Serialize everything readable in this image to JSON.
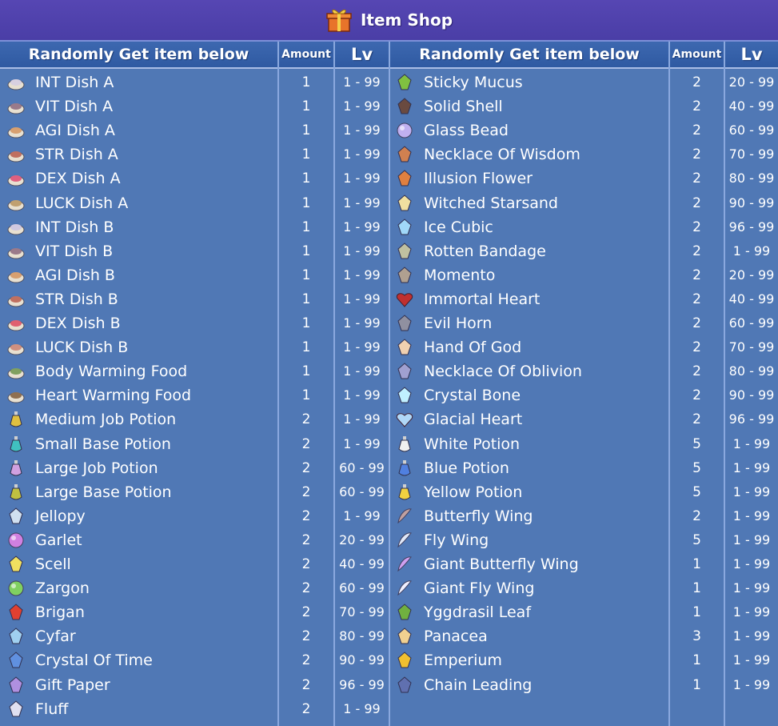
{
  "title": "Item Shop",
  "left": {
    "headers": {
      "item": "Randomly Get item below",
      "amount": "Amount",
      "lv": "Lv"
    },
    "rows": [
      {
        "name": "INT Dish A",
        "amount": "1",
        "lv": "1 - 99",
        "icon": "int-dish-icon",
        "color": "#d8d0e0"
      },
      {
        "name": "VIT Dish A",
        "amount": "1",
        "lv": "1 - 99",
        "icon": "vit-dish-icon",
        "color": "#9a7a8a"
      },
      {
        "name": "AGI Dish A",
        "amount": "1",
        "lv": "1 - 99",
        "icon": "agi-dish-icon",
        "color": "#d8a070"
      },
      {
        "name": "STR Dish A",
        "amount": "1",
        "lv": "1 - 99",
        "icon": "str-dish-icon",
        "color": "#c07060"
      },
      {
        "name": "DEX Dish A",
        "amount": "1",
        "lv": "1 - 99",
        "icon": "dex-dish-icon",
        "color": "#e06080"
      },
      {
        "name": "LUCK Dish A",
        "amount": "1",
        "lv": "1 - 99",
        "icon": "luck-dish-icon",
        "color": "#c0a070"
      },
      {
        "name": "INT Dish B",
        "amount": "1",
        "lv": "1 - 99",
        "icon": "int-dish-icon",
        "color": "#d0c8e0"
      },
      {
        "name": "VIT Dish B",
        "amount": "1",
        "lv": "1 - 99",
        "icon": "vit-dish-icon",
        "color": "#9a7a8a"
      },
      {
        "name": "AGI Dish B",
        "amount": "1",
        "lv": "1 - 99",
        "icon": "agi-dish-icon",
        "color": "#d8a070"
      },
      {
        "name": "STR Dish B",
        "amount": "1",
        "lv": "1 - 99",
        "icon": "str-dish-icon",
        "color": "#c07060"
      },
      {
        "name": "DEX Dish B",
        "amount": "1",
        "lv": "1 - 99",
        "icon": "dex-dish-icon",
        "color": "#e06070"
      },
      {
        "name": "LUCK Dish B",
        "amount": "1",
        "lv": "1 - 99",
        "icon": "luck-dish-icon",
        "color": "#d09080"
      },
      {
        "name": "Body Warming Food",
        "amount": "1",
        "lv": "1 - 99",
        "icon": "food-icon",
        "color": "#80a060"
      },
      {
        "name": "Heart Warming Food",
        "amount": "1",
        "lv": "1 - 99",
        "icon": "food-icon",
        "color": "#907050"
      },
      {
        "name": "Medium Job Potion",
        "amount": "2",
        "lv": "1 - 99",
        "icon": "potion-icon",
        "color": "#e0c040"
      },
      {
        "name": "Small Base Potion",
        "amount": "2",
        "lv": "1 - 99",
        "icon": "potion-icon",
        "color": "#40c0c0"
      },
      {
        "name": "Large Job Potion",
        "amount": "2",
        "lv": "60 - 99",
        "icon": "potion-icon",
        "color": "#d0a0e0"
      },
      {
        "name": "Large Base Potion",
        "amount": "2",
        "lv": "60 - 99",
        "icon": "potion-icon",
        "color": "#c0c040"
      },
      {
        "name": "Jellopy",
        "amount": "2",
        "lv": "1 - 99",
        "icon": "jellopy-icon",
        "color": "#d0e0f0"
      },
      {
        "name": "Garlet",
        "amount": "2",
        "lv": "20 - 99",
        "icon": "garlet-icon",
        "color": "#d080e0"
      },
      {
        "name": "Scell",
        "amount": "2",
        "lv": "40 - 99",
        "icon": "scell-icon",
        "color": "#f0e060"
      },
      {
        "name": "Zargon",
        "amount": "2",
        "lv": "60 - 99",
        "icon": "zargon-icon",
        "color": "#80d060"
      },
      {
        "name": "Brigan",
        "amount": "2",
        "lv": "70 - 99",
        "icon": "brigan-icon",
        "color": "#e04030"
      },
      {
        "name": "Cyfar",
        "amount": "2",
        "lv": "80 - 99",
        "icon": "cyfar-icon",
        "color": "#a0d0f0"
      },
      {
        "name": "Crystal Of Time",
        "amount": "2",
        "lv": "90 - 99",
        "icon": "crystal-icon",
        "color": "#6090e0"
      },
      {
        "name": "Gift Paper",
        "amount": "2",
        "lv": "96 - 99",
        "icon": "gift-paper-icon",
        "color": "#b090e0"
      },
      {
        "name": "Fluff",
        "amount": "2",
        "lv": "1 - 99",
        "icon": "fluff-icon",
        "color": "#e0e0f0"
      }
    ]
  },
  "right": {
    "headers": {
      "item": "Randomly Get item below",
      "amount": "Amount",
      "lv": "Lv"
    },
    "rows": [
      {
        "name": "Sticky Mucus",
        "amount": "2",
        "lv": "20 - 99",
        "icon": "mucus-icon",
        "color": "#80c040"
      },
      {
        "name": "Solid Shell",
        "amount": "2",
        "lv": "40 - 99",
        "icon": "shell-icon",
        "color": "#6a4a40"
      },
      {
        "name": "Glass Bead",
        "amount": "2",
        "lv": "60 - 99",
        "icon": "bead-icon",
        "color": "#c0b0f0"
      },
      {
        "name": "Necklace Of Wisdom",
        "amount": "2",
        "lv": "70 - 99",
        "icon": "necklace-icon",
        "color": "#d08050"
      },
      {
        "name": "Illusion Flower",
        "amount": "2",
        "lv": "80 - 99",
        "icon": "flower-icon",
        "color": "#e08040"
      },
      {
        "name": "Witched Starsand",
        "amount": "2",
        "lv": "90 - 99",
        "icon": "starsand-icon",
        "color": "#f0e0a0"
      },
      {
        "name": "Ice Cubic",
        "amount": "2",
        "lv": "96 - 99",
        "icon": "ice-icon",
        "color": "#a0d8f8"
      },
      {
        "name": "Rotten Bandage",
        "amount": "2",
        "lv": "1 - 99",
        "icon": "bandage-icon",
        "color": "#c0c0a0"
      },
      {
        "name": "Momento",
        "amount": "2",
        "lv": "20 - 99",
        "icon": "momento-icon",
        "color": "#b0a090"
      },
      {
        "name": "Immortal Heart",
        "amount": "2",
        "lv": "40 - 99",
        "icon": "heart-icon",
        "color": "#c03030"
      },
      {
        "name": "Evil Horn",
        "amount": "2",
        "lv": "60 - 99",
        "icon": "horn-icon",
        "color": "#9090a0"
      },
      {
        "name": "Hand Of God",
        "amount": "2",
        "lv": "70 - 99",
        "icon": "hand-icon",
        "color": "#f0d0b0"
      },
      {
        "name": "Necklace Of Oblivion",
        "amount": "2",
        "lv": "80 - 99",
        "icon": "necklace-icon",
        "color": "#a0a0d0"
      },
      {
        "name": "Crystal Bone",
        "amount": "2",
        "lv": "90 - 99",
        "icon": "bone-icon",
        "color": "#c0f0ff"
      },
      {
        "name": "Glacial Heart",
        "amount": "2",
        "lv": "96 - 99",
        "icon": "heart-icon",
        "color": "#b0d8f8"
      },
      {
        "name": "White Potion",
        "amount": "5",
        "lv": "1 - 99",
        "icon": "potion-icon",
        "color": "#f0f0f0"
      },
      {
        "name": "Blue Potion",
        "amount": "5",
        "lv": "1 - 99",
        "icon": "potion-icon",
        "color": "#5080e0"
      },
      {
        "name": "Yellow Potion",
        "amount": "5",
        "lv": "1 - 99",
        "icon": "potion-icon",
        "color": "#f0d040"
      },
      {
        "name": "Butterfly Wing",
        "amount": "2",
        "lv": "1 - 99",
        "icon": "wing-icon",
        "color": "#c0a0a0"
      },
      {
        "name": "Fly Wing",
        "amount": "5",
        "lv": "1 - 99",
        "icon": "wing-icon",
        "color": "#e0e8f8"
      },
      {
        "name": "Giant Butterfly Wing",
        "amount": "1",
        "lv": "1 - 99",
        "icon": "wing-icon",
        "color": "#d0a0f0"
      },
      {
        "name": "Giant Fly Wing",
        "amount": "1",
        "lv": "1 - 99",
        "icon": "wing-icon",
        "color": "#f0f0ff"
      },
      {
        "name": "Yggdrasil Leaf",
        "amount": "1",
        "lv": "1 - 99",
        "icon": "leaf-icon",
        "color": "#70b040"
      },
      {
        "name": "Panacea",
        "amount": "3",
        "lv": "1 - 99",
        "icon": "panacea-icon",
        "color": "#f0d090"
      },
      {
        "name": "Emperium",
        "amount": "1",
        "lv": "1 - 99",
        "icon": "emperium-icon",
        "color": "#f0c030"
      },
      {
        "name": "Chain Leading",
        "amount": "1",
        "lv": "1 - 99",
        "icon": "chain-icon",
        "color": "#6070b0"
      }
    ]
  }
}
